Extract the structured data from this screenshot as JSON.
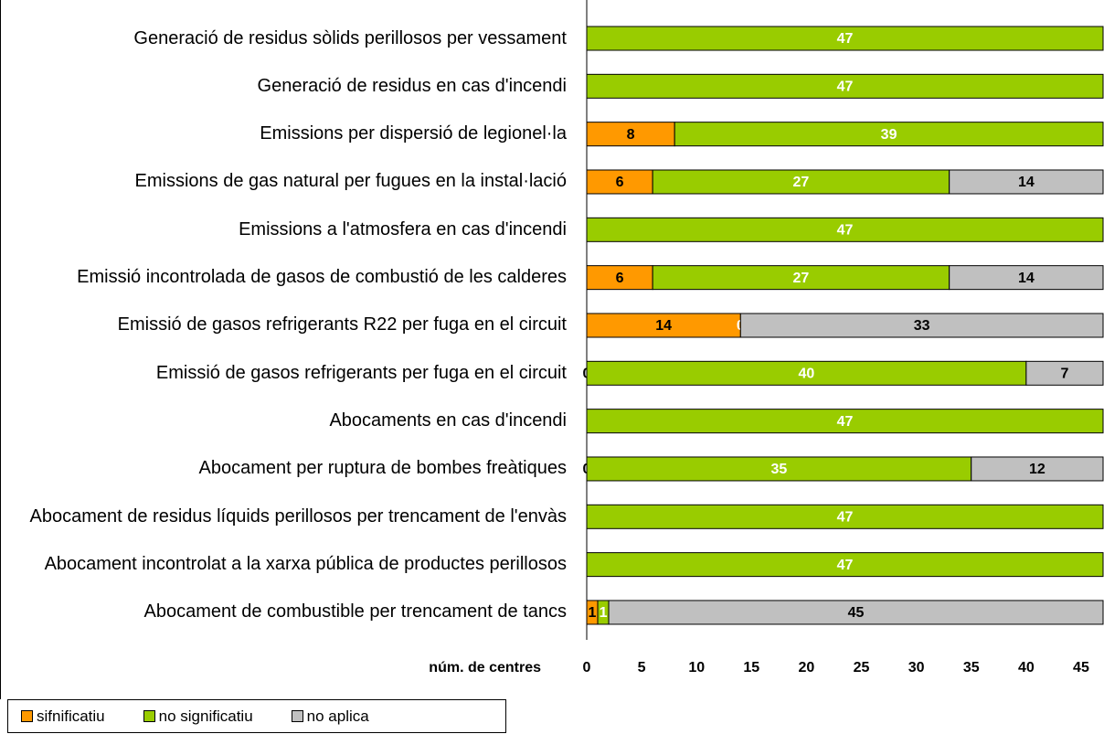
{
  "chart_data": {
    "type": "hbar_stacked",
    "categories": [
      "Generació de residus sòlids perillosos per vessament",
      "Generació de residus en cas d'incendi",
      "Emissions per dispersió de legionel·la",
      "Emissions de gas natural per fugues en la instal·lació",
      "Emissions a l'atmosfera en cas d'incendi",
      "Emissió incontrolada de gasos de combustió de les calderes",
      "Emissió de gasos refrigerants R22 per fuga en el circuit",
      "Emissió de gasos refrigerants per fuga en el circuit",
      "Abocaments en cas d'incendi",
      "Abocament per ruptura de bombes freàtiques",
      "Abocament de residus líquids perillosos per trencament de l'envàs",
      "Abocament incontrolat a la xarxa pública de productes perillosos",
      "Abocament de combustible per trencament de tancs"
    ],
    "series": [
      {
        "name": "sifnificatiu",
        "color": "#ff9900",
        "values": [
          null,
          null,
          8,
          6,
          null,
          6,
          14,
          0,
          null,
          0,
          null,
          null,
          1
        ]
      },
      {
        "name": "no significatiu",
        "color": "#99cc00",
        "values": [
          47,
          47,
          39,
          27,
          47,
          27,
          0,
          40,
          47,
          35,
          47,
          47,
          1
        ]
      },
      {
        "name": "no aplica",
        "color": "#c0c0c0",
        "values": [
          null,
          null,
          null,
          14,
          null,
          14,
          33,
          7,
          null,
          12,
          null,
          null,
          45
        ]
      }
    ],
    "x_label": "núm. de centres",
    "xlim": [
      0,
      47
    ],
    "xticks": [
      0,
      5,
      10,
      15,
      20,
      25,
      30,
      35,
      40,
      45
    ]
  }
}
